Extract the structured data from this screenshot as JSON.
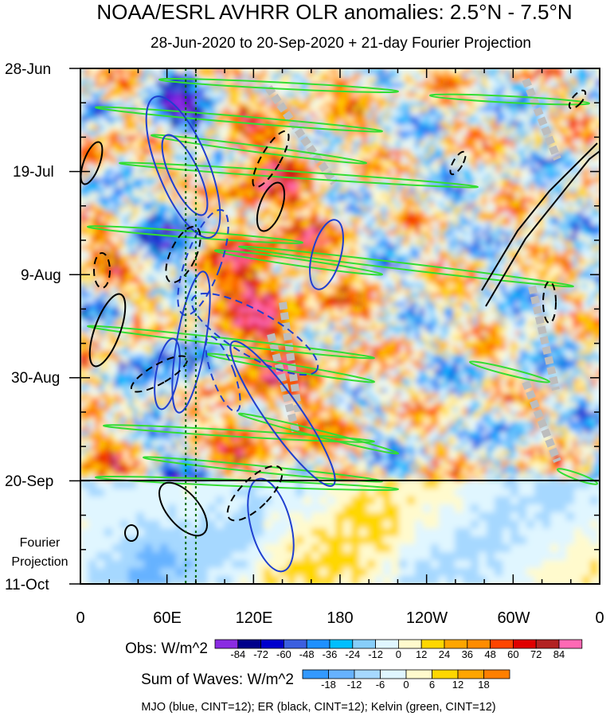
{
  "chart_data": {
    "type": "heatmap",
    "title": "NOAA/ESRL AVHRR OLR anomalies: 2.5°N - 7.5°N",
    "subtitle": "28-Jun-2020 to 20-Sep-2020 + 21-day Fourier Projection",
    "y_axis": {
      "labels": [
        "28-Jun",
        "19-Jul",
        "9-Aug",
        "30-Aug",
        "20-Sep",
        "11-Oct"
      ],
      "projection_label_line1": "Fourier",
      "projection_label_line2": "Projection",
      "range": [
        "28-Jun-2020",
        "11-Oct-2020"
      ],
      "observed_end": "20-Sep-2020"
    },
    "x_axis": {
      "labels": [
        "0",
        "60E",
        "120E",
        "180",
        "120W",
        "60W",
        "0"
      ],
      "range_deg": [
        0,
        360
      ]
    },
    "obs_colorbar": {
      "title": "Obs: W/m^2",
      "levels": [
        "-84",
        "-72",
        "-60",
        "-48",
        "-36",
        "-24",
        "-12",
        "0",
        "12",
        "24",
        "36",
        "48",
        "60",
        "72",
        "84"
      ],
      "colors": [
        "#8a2be2",
        "#00008b",
        "#0000cd",
        "#3b5fe0",
        "#1e90ff",
        "#00bfff",
        "#87cefa",
        "#e0f6ff",
        "#fffacd",
        "#ffd700",
        "#ffa500",
        "#ff8c00",
        "#ff4500",
        "#e00000",
        "#b22222",
        "#ff69b4"
      ]
    },
    "waves_colorbar": {
      "title": "Sum of Waves: W/m^2",
      "levels": [
        "-18",
        "-12",
        "-6",
        "0",
        "6",
        "12",
        "18"
      ],
      "colors": [
        "#3399ff",
        "#66b2ff",
        "#a6d8ff",
        "#e0f6ff",
        "#fffacd",
        "#ffd700",
        "#ffa500",
        "#ff7f00"
      ]
    },
    "caption": "MJO (blue, CINT=12); ER (black, CINT=12); Kelvin (green, CINT=12)",
    "series": [
      {
        "name": "MJO",
        "color": "#1f3fd0",
        "contour_interval": 12
      },
      {
        "name": "ER",
        "color": "#000000",
        "contour_interval": 12
      },
      {
        "name": "Kelvin",
        "color": "#33dd33",
        "contour_interval": 12
      }
    ],
    "reference_lines_deg": [
      73,
      80
    ]
  }
}
